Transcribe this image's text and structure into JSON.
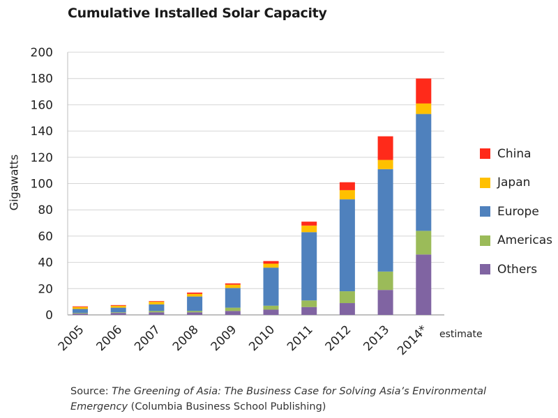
{
  "chart_data": {
    "type": "bar",
    "stacked": true,
    "title": "Cumulative Installed Solar Capacity",
    "ylabel": "Gigawatts",
    "xlabel": "",
    "ylim": [
      0,
      200
    ],
    "yticks": [
      0,
      20,
      40,
      60,
      80,
      100,
      120,
      140,
      160,
      180,
      200
    ],
    "ytick_labels": [
      "0",
      "20",
      "40",
      "60",
      "80",
      "100",
      "120",
      "140",
      "160",
      "180",
      "200"
    ],
    "grid": true,
    "legend_position": "right",
    "categories": [
      "2005",
      "2006",
      "2007",
      "2008",
      "2009",
      "2010",
      "2011",
      "2012",
      "2013",
      "2014*"
    ],
    "series": [
      {
        "name": "Others",
        "color": "#8064a2",
        "values": [
          1,
          1.5,
          2,
          2,
          3,
          4,
          6,
          9,
          19,
          46
        ]
      },
      {
        "name": "Americas",
        "color": "#9bbb59",
        "values": [
          0.5,
          0.5,
          1,
          1,
          2.5,
          3,
          5,
          9,
          14,
          18
        ]
      },
      {
        "name": "Europe",
        "color": "#4f81bd",
        "values": [
          3,
          3.5,
          5,
          11,
          15,
          29,
          52,
          70,
          78,
          89
        ]
      },
      {
        "name": "Japan",
        "color": "#ffc000",
        "values": [
          1.5,
          1.5,
          2,
          2,
          2.5,
          3,
          5,
          7,
          7,
          8
        ]
      },
      {
        "name": "China",
        "color": "#ff2a1a",
        "values": [
          0.5,
          0.5,
          0.5,
          1,
          1,
          2,
          3,
          6,
          18,
          19
        ]
      }
    ],
    "annotations": [
      "estimate"
    ]
  },
  "legend_order": [
    "China",
    "Japan",
    "Europe",
    "Americas",
    "Others"
  ],
  "source": {
    "prefix": "Source: ",
    "title": "The Greening of Asia: The Business Case for Solving Asia’s Environmental Emergency",
    "suffix": " (Columbia Business School Publishing)"
  }
}
